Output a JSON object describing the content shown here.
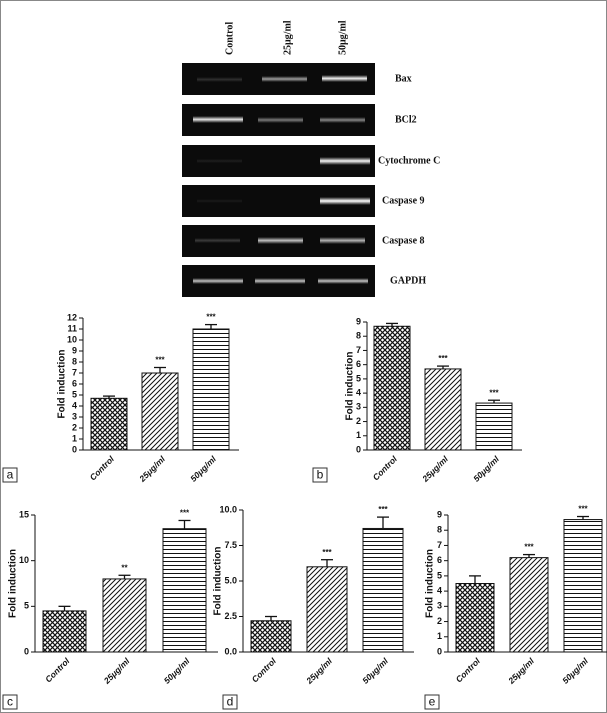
{
  "gel": {
    "lanes": [
      "Control",
      "25μg/ml",
      "50μg/ml"
    ],
    "bands": [
      "Bax",
      "BCl2",
      "Cytochrome C",
      "Caspase 9",
      "Caspase 8",
      "GAPDH"
    ]
  },
  "chart_data": [
    {
      "type": "bar",
      "panel": "a",
      "ylabel": "Fold induction",
      "categories": [
        "Control",
        "25μg/ml",
        "50μg/ml"
      ],
      "values": [
        4.7,
        7.0,
        11.0
      ],
      "errors": [
        0.2,
        0.5,
        0.4
      ],
      "annotations": [
        null,
        "***",
        "***"
      ],
      "ylim": [
        0,
        12
      ],
      "yticks": [
        0,
        1,
        2,
        3,
        4,
        5,
        6,
        7,
        8,
        9,
        10,
        11,
        12
      ]
    },
    {
      "type": "bar",
      "panel": "b",
      "ylabel": "Fold induction",
      "categories": [
        "Control",
        "25μg/ml",
        "50μg/ml"
      ],
      "values": [
        8.7,
        5.7,
        3.3
      ],
      "errors": [
        0.2,
        0.2,
        0.2
      ],
      "annotations": [
        null,
        "***",
        "***"
      ],
      "ylim": [
        0,
        9
      ],
      "yticks": [
        0,
        1,
        2,
        3,
        4,
        5,
        6,
        7,
        8,
        9
      ]
    },
    {
      "type": "bar",
      "panel": "c",
      "ylabel": "Fold induction",
      "categories": [
        "Control",
        "25μg/ml",
        "50μg/ml"
      ],
      "values": [
        4.5,
        8.0,
        13.5
      ],
      "errors": [
        0.5,
        0.4,
        0.9
      ],
      "annotations": [
        null,
        "**",
        "***"
      ],
      "ylim": [
        0,
        15
      ],
      "yticks": [
        0,
        5,
        10,
        15
      ]
    },
    {
      "type": "bar",
      "panel": "d",
      "ylabel": "Fold induction",
      "categories": [
        "Control",
        "25μg/ml",
        "50μg/ml"
      ],
      "values": [
        2.2,
        6.0,
        8.7
      ],
      "errors": [
        0.3,
        0.5,
        0.8
      ],
      "annotations": [
        null,
        "***",
        "***"
      ],
      "ylim": [
        0,
        10
      ],
      "yticks": [
        {
          "value": 0,
          "label": "0.0"
        },
        {
          "value": 2.5,
          "label": "2.5"
        },
        {
          "value": 5,
          "label": "5.0"
        },
        {
          "value": 7.5,
          "label": "7.5"
        },
        {
          "value": 10,
          "label": "10.0"
        }
      ]
    },
    {
      "type": "bar",
      "panel": "e",
      "ylabel": "Fold induction",
      "categories": [
        "Control",
        "25μg/ml",
        "50μg/ml"
      ],
      "values": [
        4.5,
        6.2,
        8.7
      ],
      "errors": [
        0.5,
        0.2,
        0.2
      ],
      "annotations": [
        null,
        "***",
        "***"
      ],
      "ylim": [
        0,
        9
      ],
      "yticks": [
        0,
        1,
        2,
        3,
        4,
        5,
        6,
        7,
        8,
        9
      ]
    }
  ]
}
